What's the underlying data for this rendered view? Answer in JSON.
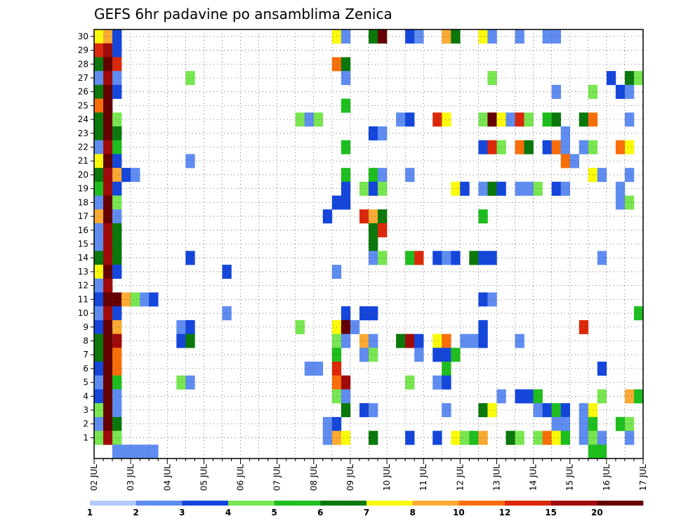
{
  "chart_data": {
    "type": "heatmap",
    "title": "GEFS 6hr padavine po ansamblima Zenica",
    "xlabel": "",
    "ylabel": "",
    "x_tick_labels": [
      "02 JUL",
      "03 JUL",
      "04 JUL",
      "05 JUL",
      "06 JUL",
      "07 JUL",
      "08 JUL",
      "09 JUL",
      "10 JUL",
      "11 JUL",
      "12 JUL",
      "13 JUL",
      "14 JUL",
      "15 JUL",
      "16 JUL",
      "17 JUL"
    ],
    "y_members": [
      1,
      2,
      3,
      4,
      5,
      6,
      7,
      8,
      9,
      10,
      11,
      12,
      13,
      14,
      15,
      16,
      17,
      18,
      19,
      20,
      21,
      22,
      23,
      24,
      25,
      26,
      27,
      28,
      29,
      30
    ],
    "steps_per_day": 4,
    "n_steps": 60,
    "grid": true,
    "colorbar": {
      "labels": [
        "1",
        "2",
        "3",
        "4",
        "5",
        "6",
        "7",
        "8",
        "10",
        "12",
        "15",
        "20"
      ],
      "colors": [
        "#b4c8fa",
        "#5f8cf0",
        "#1446dc",
        "#78e650",
        "#1ebe1e",
        "#0a780a",
        "#fafa0a",
        "#faaa32",
        "#fa6e0a",
        "#dc280a",
        "#a00a0a",
        "#640000"
      ]
    },
    "cells": [
      [
        0,
        30,
        6
      ],
      [
        1,
        30,
        7
      ],
      [
        2,
        30,
        2
      ],
      [
        26,
        30,
        6
      ],
      [
        27,
        30,
        1
      ],
      [
        30,
        30,
        5
      ],
      [
        31,
        30,
        11
      ],
      [
        34,
        30,
        2
      ],
      [
        35,
        30,
        1
      ],
      [
        38,
        30,
        7
      ],
      [
        39,
        30,
        5
      ],
      [
        42,
        30,
        6
      ],
      [
        43,
        30,
        1
      ],
      [
        46,
        30,
        1
      ],
      [
        49,
        30,
        1
      ],
      [
        50,
        30,
        1
      ],
      [
        0,
        29,
        9
      ],
      [
        1,
        29,
        10
      ],
      [
        2,
        29,
        2
      ],
      [
        0,
        28,
        5
      ],
      [
        1,
        28,
        11
      ],
      [
        2,
        28,
        9
      ],
      [
        26,
        28,
        8
      ],
      [
        27,
        28,
        5
      ],
      [
        0,
        27,
        1
      ],
      [
        1,
        27,
        10
      ],
      [
        2,
        27,
        1
      ],
      [
        10,
        27,
        3
      ],
      [
        27,
        27,
        1
      ],
      [
        43,
        27,
        3
      ],
      [
        56,
        27,
        2
      ],
      [
        58,
        27,
        5
      ],
      [
        59,
        27,
        3
      ],
      [
        0,
        26,
        5
      ],
      [
        1,
        26,
        11
      ],
      [
        2,
        26,
        2
      ],
      [
        50,
        26,
        1
      ],
      [
        54,
        26,
        3
      ],
      [
        57,
        26,
        2
      ],
      [
        58,
        26,
        1
      ],
      [
        0,
        25,
        8
      ],
      [
        1,
        25,
        11
      ],
      [
        27,
        25,
        4
      ],
      [
        0,
        24,
        5
      ],
      [
        1,
        24,
        11
      ],
      [
        2,
        24,
        3
      ],
      [
        22,
        24,
        3
      ],
      [
        23,
        24,
        1
      ],
      [
        24,
        24,
        3
      ],
      [
        33,
        24,
        1
      ],
      [
        34,
        24,
        2
      ],
      [
        37,
        24,
        9
      ],
      [
        38,
        24,
        6
      ],
      [
        42,
        24,
        3
      ],
      [
        43,
        24,
        11
      ],
      [
        44,
        24,
        6
      ],
      [
        45,
        24,
        1
      ],
      [
        46,
        24,
        9
      ],
      [
        47,
        24,
        3
      ],
      [
        49,
        24,
        4
      ],
      [
        50,
        24,
        5
      ],
      [
        53,
        24,
        5
      ],
      [
        54,
        24,
        8
      ],
      [
        58,
        24,
        1
      ],
      [
        0,
        23,
        5
      ],
      [
        1,
        23,
        11
      ],
      [
        2,
        23,
        5
      ],
      [
        30,
        23,
        2
      ],
      [
        31,
        23,
        1
      ],
      [
        51,
        23,
        1
      ],
      [
        0,
        22,
        1
      ],
      [
        1,
        22,
        10
      ],
      [
        2,
        22,
        4
      ],
      [
        27,
        22,
        4
      ],
      [
        42,
        22,
        2
      ],
      [
        43,
        22,
        9
      ],
      [
        44,
        22,
        3
      ],
      [
        46,
        22,
        8
      ],
      [
        47,
        22,
        5
      ],
      [
        49,
        22,
        2
      ],
      [
        50,
        22,
        8
      ],
      [
        51,
        22,
        1
      ],
      [
        53,
        22,
        1
      ],
      [
        54,
        22,
        3
      ],
      [
        57,
        22,
        8
      ],
      [
        58,
        22,
        6
      ],
      [
        0,
        21,
        6
      ],
      [
        1,
        21,
        11
      ],
      [
        2,
        21,
        2
      ],
      [
        10,
        21,
        1
      ],
      [
        51,
        21,
        8
      ],
      [
        52,
        21,
        1
      ],
      [
        0,
        20,
        5
      ],
      [
        1,
        20,
        10
      ],
      [
        2,
        20,
        7
      ],
      [
        3,
        20,
        2
      ],
      [
        4,
        20,
        1
      ],
      [
        27,
        20,
        4
      ],
      [
        30,
        20,
        4
      ],
      [
        31,
        20,
        1
      ],
      [
        34,
        20,
        1
      ],
      [
        54,
        20,
        6
      ],
      [
        55,
        20,
        1
      ],
      [
        58,
        20,
        1
      ],
      [
        0,
        19,
        4
      ],
      [
        1,
        19,
        10
      ],
      [
        2,
        19,
        2
      ],
      [
        27,
        19,
        2
      ],
      [
        29,
        19,
        3
      ],
      [
        30,
        19,
        2
      ],
      [
        31,
        19,
        3
      ],
      [
        39,
        19,
        6
      ],
      [
        40,
        19,
        2
      ],
      [
        42,
        19,
        1
      ],
      [
        43,
        19,
        5
      ],
      [
        44,
        19,
        2
      ],
      [
        46,
        19,
        1
      ],
      [
        47,
        19,
        1
      ],
      [
        48,
        19,
        3
      ],
      [
        50,
        19,
        2
      ],
      [
        51,
        19,
        1
      ],
      [
        57,
        19,
        1
      ],
      [
        0,
        18,
        1
      ],
      [
        1,
        18,
        11
      ],
      [
        2,
        18,
        3
      ],
      [
        26,
        18,
        2
      ],
      [
        27,
        18,
        2
      ],
      [
        57,
        18,
        1
      ],
      [
        58,
        18,
        3
      ],
      [
        0,
        17,
        7
      ],
      [
        1,
        17,
        11
      ],
      [
        2,
        17,
        1
      ],
      [
        25,
        17,
        2
      ],
      [
        29,
        17,
        9
      ],
      [
        30,
        17,
        7
      ],
      [
        31,
        17,
        5
      ],
      [
        42,
        17,
        4
      ],
      [
        0,
        16,
        1
      ],
      [
        1,
        16,
        10
      ],
      [
        2,
        16,
        5
      ],
      [
        30,
        16,
        5
      ],
      [
        31,
        16,
        9
      ],
      [
        0,
        15,
        1
      ],
      [
        1,
        15,
        10
      ],
      [
        2,
        15,
        5
      ],
      [
        30,
        15,
        5
      ],
      [
        0,
        14,
        5
      ],
      [
        1,
        14,
        10
      ],
      [
        2,
        14,
        5
      ],
      [
        10,
        14,
        2
      ],
      [
        30,
        14,
        1
      ],
      [
        31,
        14,
        3
      ],
      [
        34,
        14,
        4
      ],
      [
        35,
        14,
        9
      ],
      [
        37,
        14,
        2
      ],
      [
        38,
        14,
        1
      ],
      [
        39,
        14,
        2
      ],
      [
        41,
        14,
        5
      ],
      [
        42,
        14,
        2
      ],
      [
        43,
        14,
        2
      ],
      [
        55,
        14,
        1
      ],
      [
        0,
        13,
        6
      ],
      [
        1,
        13,
        11
      ],
      [
        2,
        13,
        2
      ],
      [
        14,
        13,
        2
      ],
      [
        26,
        13,
        1
      ],
      [
        0,
        12,
        1
      ],
      [
        1,
        12,
        10
      ],
      [
        0,
        11,
        2
      ],
      [
        1,
        11,
        11
      ],
      [
        2,
        11,
        11
      ],
      [
        3,
        11,
        7
      ],
      [
        4,
        11,
        3
      ],
      [
        5,
        11,
        1
      ],
      [
        6,
        11,
        2
      ],
      [
        42,
        11,
        2
      ],
      [
        43,
        11,
        1
      ],
      [
        0,
        10,
        1
      ],
      [
        1,
        10,
        10
      ],
      [
        2,
        10,
        2
      ],
      [
        14,
        10,
        1
      ],
      [
        27,
        10,
        2
      ],
      [
        29,
        10,
        2
      ],
      [
        30,
        10,
        2
      ],
      [
        59,
        10,
        4
      ],
      [
        0,
        9,
        2
      ],
      [
        1,
        9,
        11
      ],
      [
        2,
        9,
        7
      ],
      [
        9,
        9,
        1
      ],
      [
        10,
        9,
        2
      ],
      [
        22,
        9,
        3
      ],
      [
        26,
        9,
        6
      ],
      [
        27,
        9,
        11
      ],
      [
        28,
        9,
        1
      ],
      [
        42,
        9,
        2
      ],
      [
        53,
        9,
        9
      ],
      [
        0,
        8,
        5
      ],
      [
        1,
        8,
        11
      ],
      [
        2,
        8,
        10
      ],
      [
        9,
        8,
        2
      ],
      [
        10,
        8,
        5
      ],
      [
        26,
        8,
        3
      ],
      [
        27,
        8,
        1
      ],
      [
        29,
        8,
        7
      ],
      [
        30,
        8,
        1
      ],
      [
        33,
        8,
        5
      ],
      [
        34,
        8,
        10
      ],
      [
        35,
        8,
        2
      ],
      [
        37,
        8,
        6
      ],
      [
        38,
        8,
        8
      ],
      [
        40,
        8,
        1
      ],
      [
        41,
        8,
        1
      ],
      [
        42,
        8,
        2
      ],
      [
        46,
        8,
        1
      ],
      [
        0,
        7,
        5
      ],
      [
        1,
        7,
        11
      ],
      [
        2,
        7,
        8
      ],
      [
        26,
        7,
        4
      ],
      [
        29,
        7,
        1
      ],
      [
        30,
        7,
        3
      ],
      [
        35,
        7,
        1
      ],
      [
        37,
        7,
        2
      ],
      [
        38,
        7,
        2
      ],
      [
        39,
        7,
        4
      ],
      [
        0,
        6,
        2
      ],
      [
        1,
        6,
        11
      ],
      [
        2,
        6,
        8
      ],
      [
        23,
        6,
        1
      ],
      [
        24,
        6,
        1
      ],
      [
        26,
        6,
        9
      ],
      [
        38,
        6,
        4
      ],
      [
        55,
        6,
        2
      ],
      [
        0,
        5,
        1
      ],
      [
        1,
        5,
        11
      ],
      [
        2,
        5,
        4
      ],
      [
        9,
        5,
        3
      ],
      [
        10,
        5,
        1
      ],
      [
        26,
        5,
        8
      ],
      [
        27,
        5,
        10
      ],
      [
        34,
        5,
        3
      ],
      [
        37,
        5,
        1
      ],
      [
        38,
        5,
        2
      ],
      [
        0,
        4,
        2
      ],
      [
        1,
        4,
        11
      ],
      [
        2,
        4,
        1
      ],
      [
        26,
        4,
        3
      ],
      [
        27,
        4,
        1
      ],
      [
        44,
        4,
        1
      ],
      [
        46,
        4,
        2
      ],
      [
        47,
        4,
        2
      ],
      [
        48,
        4,
        4
      ],
      [
        55,
        4,
        3
      ],
      [
        58,
        4,
        7
      ],
      [
        59,
        4,
        4
      ],
      [
        0,
        3,
        3
      ],
      [
        1,
        3,
        11
      ],
      [
        2,
        3,
        1
      ],
      [
        27,
        3,
        5
      ],
      [
        29,
        3,
        2
      ],
      [
        30,
        3,
        1
      ],
      [
        38,
        3,
        1
      ],
      [
        42,
        3,
        5
      ],
      [
        43,
        3,
        6
      ],
      [
        48,
        3,
        1
      ],
      [
        49,
        3,
        2
      ],
      [
        50,
        3,
        4
      ],
      [
        51,
        3,
        2
      ],
      [
        53,
        3,
        1
      ],
      [
        54,
        3,
        6
      ],
      [
        0,
        2,
        1
      ],
      [
        1,
        2,
        11
      ],
      [
        2,
        2,
        5
      ],
      [
        25,
        2,
        1
      ],
      [
        26,
        2,
        2
      ],
      [
        50,
        2,
        1
      ],
      [
        51,
        2,
        1
      ],
      [
        53,
        2,
        1
      ],
      [
        54,
        2,
        4
      ],
      [
        57,
        2,
        4
      ],
      [
        58,
        2,
        3
      ],
      [
        0,
        1,
        3
      ],
      [
        1,
        1,
        10
      ],
      [
        2,
        1,
        3
      ],
      [
        25,
        1,
        1
      ],
      [
        26,
        1,
        7
      ],
      [
        27,
        1,
        6
      ],
      [
        30,
        1,
        5
      ],
      [
        34,
        1,
        2
      ],
      [
        37,
        1,
        2
      ],
      [
        39,
        1,
        6
      ],
      [
        40,
        1,
        3
      ],
      [
        41,
        1,
        4
      ],
      [
        42,
        1,
        7
      ],
      [
        45,
        1,
        5
      ],
      [
        46,
        1,
        3
      ],
      [
        48,
        1,
        3
      ],
      [
        49,
        1,
        8
      ],
      [
        50,
        1,
        6
      ],
      [
        51,
        1,
        4
      ],
      [
        53,
        1,
        1
      ],
      [
        54,
        1,
        3
      ],
      [
        55,
        1,
        1
      ],
      [
        58,
        1,
        1
      ],
      [
        2,
        0,
        1
      ],
      [
        3,
        0,
        1
      ],
      [
        4,
        0,
        1
      ],
      [
        5,
        0,
        1
      ],
      [
        6,
        0,
        1
      ],
      [
        54,
        0,
        4
      ],
      [
        55,
        0,
        4
      ]
    ]
  }
}
